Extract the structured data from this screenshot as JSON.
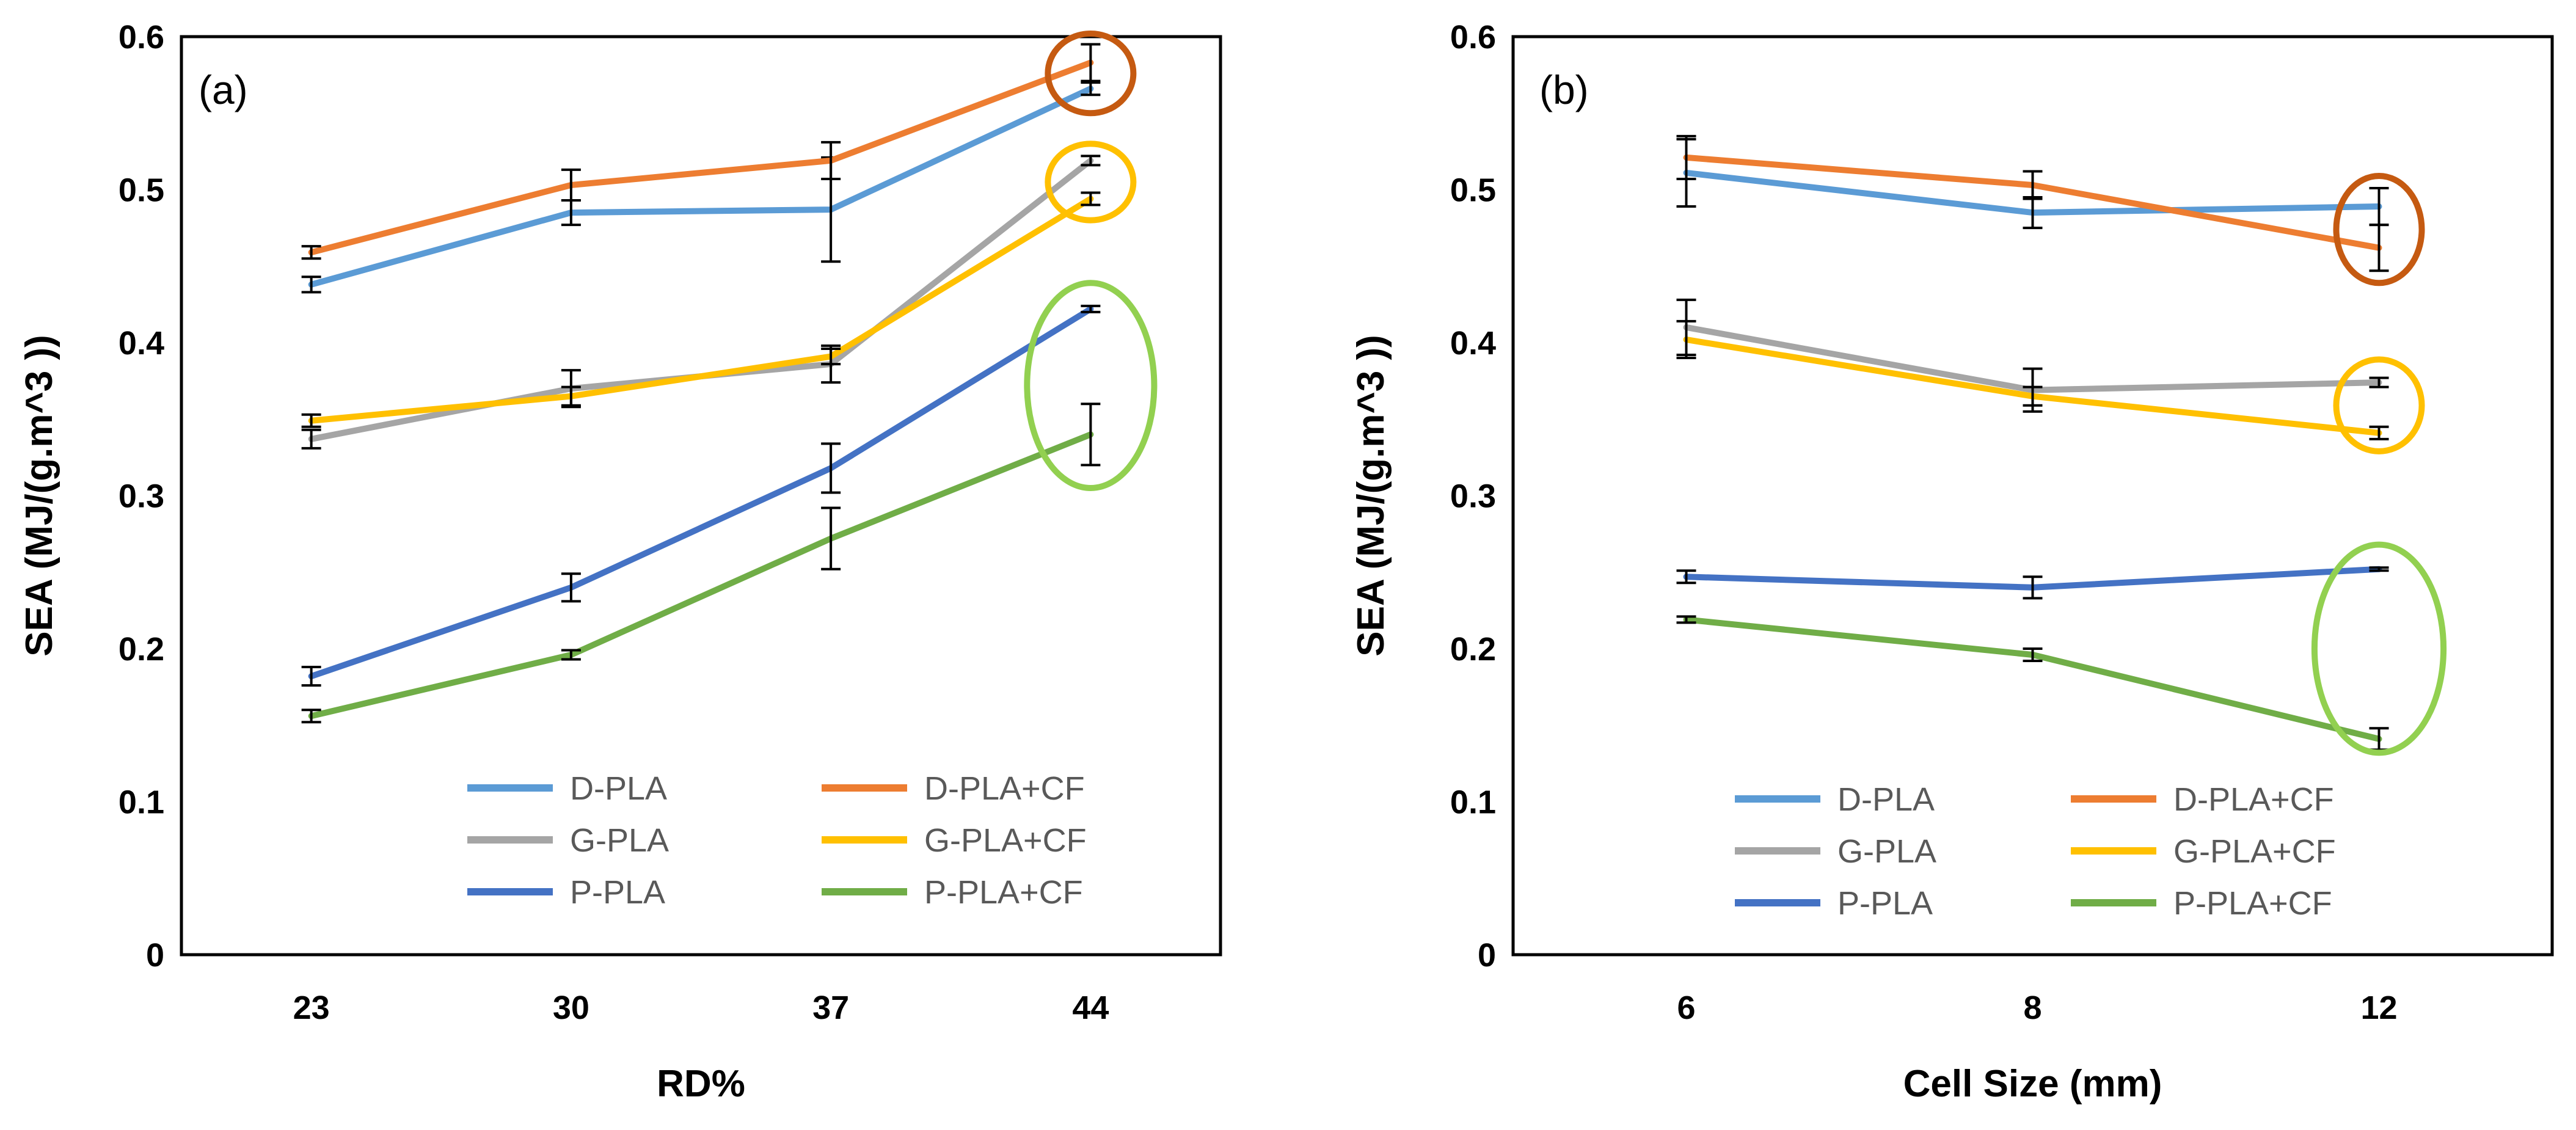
{
  "chart_data": [
    {
      "type": "line",
      "panel_label": "(a)",
      "xlabel": "RD%",
      "ylabel": "SEA (MJ/(g.m^3 ))",
      "categories": [
        "23",
        "30",
        "37",
        "44"
      ],
      "ylim": [
        0,
        0.6
      ],
      "yticks": [
        "0",
        "0.1",
        "0.2",
        "0.3",
        "0.4",
        "0.5",
        "0.6"
      ],
      "grid": false,
      "legend": "bottom-center, 3 rows x 2 columns",
      "series": [
        {
          "name": "D-PLA",
          "color": "#5B9BD5",
          "values": [
            0.438,
            0.485,
            0.487,
            0.566
          ],
          "errors": [
            0.005,
            0.008,
            0.034,
            0.004
          ]
        },
        {
          "name": "D-PLA+CF",
          "color": "#ED7D31",
          "values": [
            0.459,
            0.503,
            0.519,
            0.583
          ],
          "errors": [
            0.004,
            0.01,
            0.012,
            0.012
          ]
        },
        {
          "name": "G-PLA",
          "color": "#A5A5A5",
          "values": [
            0.337,
            0.37,
            0.386,
            0.519
          ],
          "errors": [
            0.006,
            0.012,
            0.012,
            0.003
          ]
        },
        {
          "name": "G-PLA+CF",
          "color": "#FFC000",
          "values": [
            0.349,
            0.365,
            0.391,
            0.494
          ],
          "errors": [
            0.004,
            0.006,
            0.005,
            0.004
          ]
        },
        {
          "name": "P-PLA",
          "color": "#4472C4",
          "values": [
            0.182,
            0.24,
            0.318,
            0.422
          ],
          "errors": [
            0.006,
            0.009,
            0.016,
            0.002
          ]
        },
        {
          "name": "P-PLA+CF",
          "color": "#70AD47",
          "values": [
            0.156,
            0.196,
            0.272,
            0.34
          ],
          "errors": [
            0.004,
            0.003,
            0.02,
            0.02
          ]
        }
      ],
      "annotations": [
        {
          "color": "#C55A11",
          "at_category": "44",
          "center_value": 0.576,
          "radius_value": 0.026
        },
        {
          "color": "#FFC000",
          "at_category": "44",
          "center_value": 0.505,
          "radius_value": 0.025
        },
        {
          "color": "#92D050",
          "at_category": "44",
          "center_value": 0.372,
          "radius_value": 0.067
        }
      ]
    },
    {
      "type": "line",
      "panel_label": "(b)",
      "xlabel": "Cell Size (mm)",
      "ylabel": "SEA (MJ/(g.m^3 ))",
      "categories": [
        "6",
        "8",
        "12"
      ],
      "ylim": [
        0,
        0.6
      ],
      "yticks": [
        "0",
        "0.1",
        "0.2",
        "0.3",
        "0.4",
        "0.5",
        "0.6"
      ],
      "grid": false,
      "legend": "bottom-center, 3 rows x 2 columns",
      "series": [
        {
          "name": "D-PLA",
          "color": "#5B9BD5",
          "values": [
            0.511,
            0.485,
            0.489
          ],
          "errors": [
            0.022,
            0.01,
            0.012
          ]
        },
        {
          "name": "D-PLA+CF",
          "color": "#ED7D31",
          "values": [
            0.521,
            0.503,
            0.462
          ],
          "errors": [
            0.014,
            0.009,
            0.015
          ]
        },
        {
          "name": "G-PLA",
          "color": "#A5A5A5",
          "values": [
            0.41,
            0.369,
            0.374
          ],
          "errors": [
            0.018,
            0.014,
            0.003
          ]
        },
        {
          "name": "G-PLA+CF",
          "color": "#FFC000",
          "values": [
            0.402,
            0.365,
            0.341
          ],
          "errors": [
            0.012,
            0.006,
            0.004
          ]
        },
        {
          "name": "P-PLA",
          "color": "#4472C4",
          "values": [
            0.247,
            0.24,
            0.252
          ],
          "errors": [
            0.004,
            0.007,
            0.001
          ]
        },
        {
          "name": "P-PLA+CF",
          "color": "#70AD47",
          "values": [
            0.219,
            0.196,
            0.141
          ],
          "errors": [
            0.002,
            0.004,
            0.007
          ]
        }
      ],
      "annotations": [
        {
          "color": "#C55A11",
          "at_category": "12",
          "center_value": 0.474,
          "radius_value": 0.035
        },
        {
          "color": "#FFC000",
          "at_category": "12",
          "center_value": 0.359,
          "radius_value": 0.03
        },
        {
          "color": "#92D050",
          "at_category": "12",
          "center_value": 0.2,
          "radius_value": 0.068
        }
      ]
    }
  ]
}
